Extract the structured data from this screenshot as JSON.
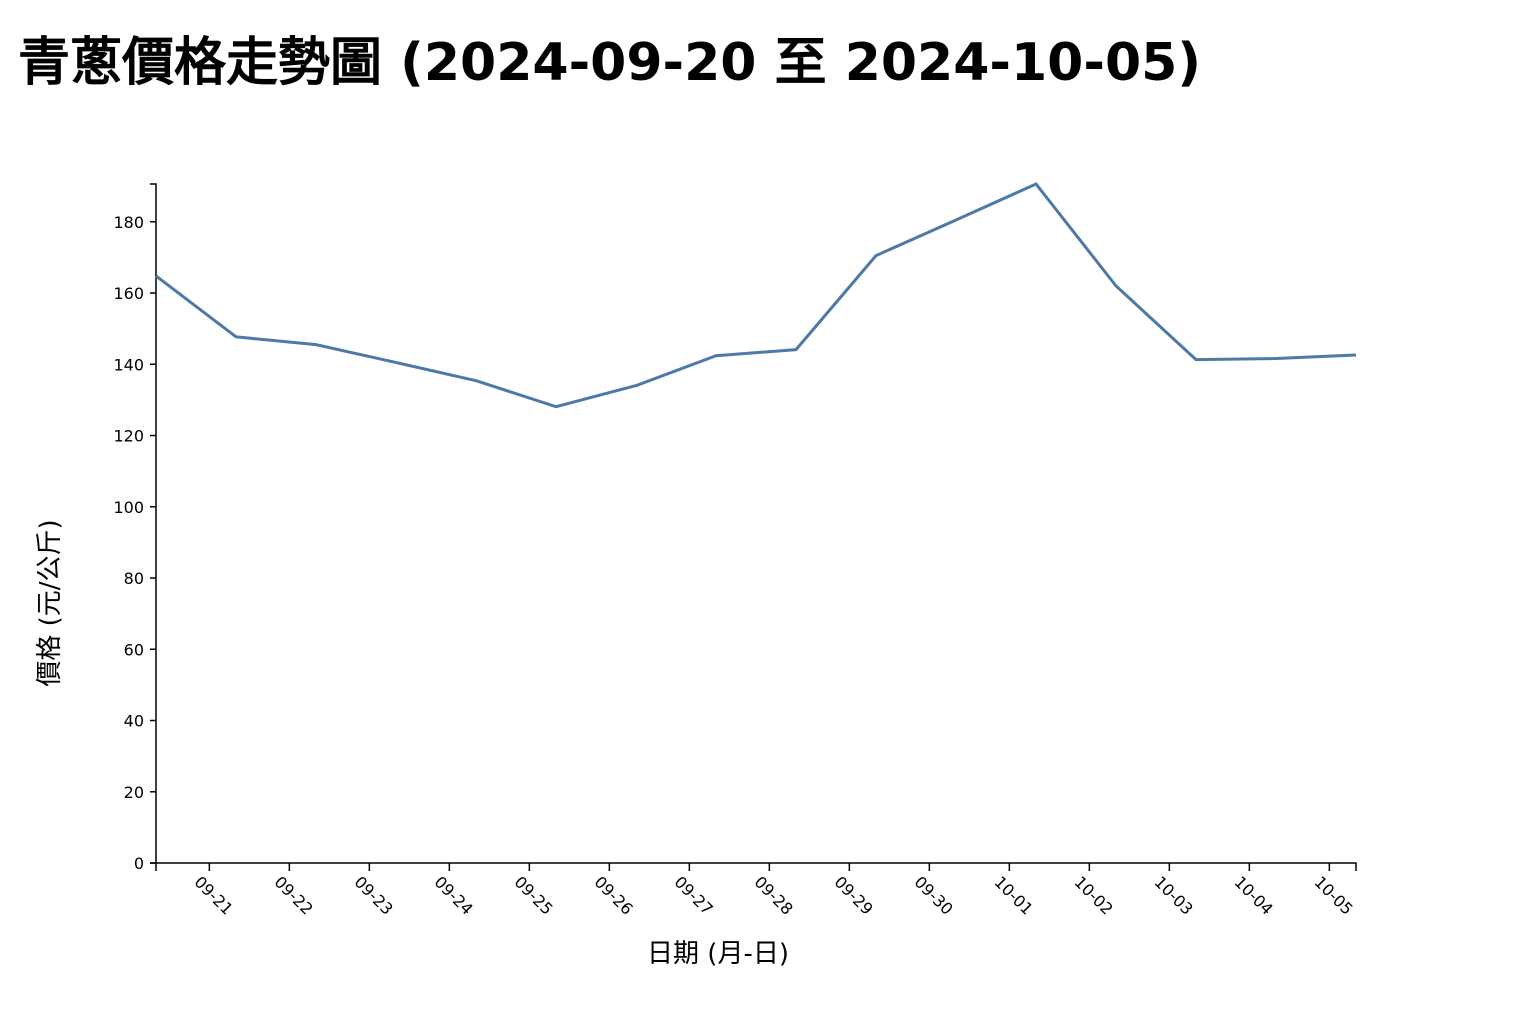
{
  "chart_data": {
    "type": "line",
    "title": "青蔥價格走勢圖 (2024-09-20 至 2024-10-05)",
    "x_label": "日期 (月-日)",
    "y_label": "價格 (元/公斤)",
    "x": [
      "2024-09-20",
      "2024-09-21",
      "2024-09-22",
      "2024-09-23",
      "2024-09-24",
      "2024-09-25",
      "2024-09-26",
      "2024-09-27",
      "2024-09-28",
      "2024-09-29",
      "2024-09-30",
      "2024-10-01",
      "2024-10-02",
      "2024-10-03",
      "2024-10-04",
      "2024-10-05"
    ],
    "series": [
      {
        "name": "青蔥",
        "color": "#4e79a7",
        "values": [
          164.8,
          147.7,
          145.5,
          140.5,
          135.4,
          128.1,
          134.0,
          142.4,
          144.1,
          170.5,
          180.5,
          190.6,
          162.0,
          141.3,
          141.6,
          142.6
        ]
      }
    ],
    "xlim": [
      "2024-09-20",
      "2024-10-05"
    ],
    "xticks": [
      {
        "value": "2024-09-20T16:00Z",
        "label": "09-21"
      },
      {
        "value": "2024-09-21T16:00Z",
        "label": "09-22"
      },
      {
        "value": "2024-09-22T16:00Z",
        "label": "09-23"
      },
      {
        "value": "2024-09-23T16:00Z",
        "label": "09-24"
      },
      {
        "value": "2024-09-24T16:00Z",
        "label": "09-25"
      },
      {
        "value": "2024-09-25T16:00Z",
        "label": "09-26"
      },
      {
        "value": "2024-09-26T16:00Z",
        "label": "09-27"
      },
      {
        "value": "2024-09-27T16:00Z",
        "label": "09-28"
      },
      {
        "value": "2024-09-28T16:00Z",
        "label": "09-29"
      },
      {
        "value": "2024-09-29T16:00Z",
        "label": "09-30"
      },
      {
        "value": "2024-09-30T16:00Z",
        "label": "10-01"
      },
      {
        "value": "2024-10-01T16:00Z",
        "label": "10-02"
      },
      {
        "value": "2024-10-02T16:00Z",
        "label": "10-03"
      },
      {
        "value": "2024-10-03T16:00Z",
        "label": "10-04"
      },
      {
        "value": "2024-10-04T16:00Z",
        "label": "10-05"
      }
    ],
    "ylim": [
      0,
      190.6
    ],
    "yticks": [
      0,
      20,
      40,
      60,
      80,
      100,
      120,
      140,
      160,
      180
    ],
    "grid": false
  }
}
